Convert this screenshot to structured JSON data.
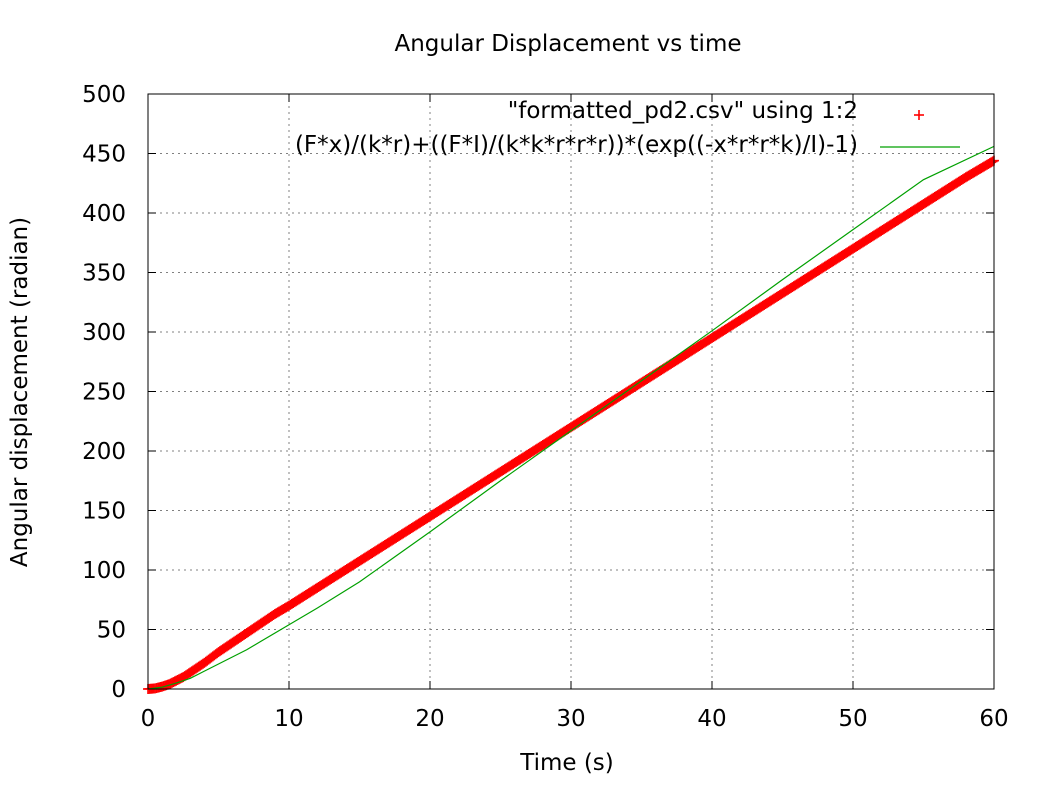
{
  "chart_data": {
    "type": "scatter",
    "title": "Angular Displacement vs time",
    "xlabel": "Time (s)",
    "ylabel": "Angular displacement (radian)",
    "xlim": [
      0,
      60
    ],
    "ylim": [
      0,
      500
    ],
    "xticks": [
      "0",
      "10",
      "20",
      "30",
      "40",
      "50",
      "60"
    ],
    "yticks": [
      "0",
      "50",
      "100",
      "150",
      "200",
      "250",
      "300",
      "350",
      "400",
      "450",
      "500"
    ],
    "grid": true,
    "legend_position": "top-right",
    "series": [
      {
        "name": "\"formatted_pd2.csv\" using 1:2",
        "kind": "points",
        "marker": "+",
        "color": "#ff0000",
        "x": [
          0,
          0.5,
          1,
          1.5,
          2,
          2.5,
          3,
          3.5,
          4,
          5,
          6,
          7,
          8,
          9,
          10,
          12,
          14,
          16,
          18,
          20,
          22,
          24,
          26,
          28,
          30,
          32,
          34,
          36,
          38,
          40,
          42,
          44,
          46,
          48,
          50,
          52,
          54,
          56,
          58,
          60
        ],
        "y": [
          0,
          0.5,
          2,
          4,
          7,
          10,
          14,
          18,
          22,
          31,
          39,
          47,
          55,
          63,
          70,
          85,
          100,
          115,
          130,
          145,
          160,
          175,
          190,
          205,
          220,
          235,
          250,
          265,
          280,
          295,
          310,
          325,
          340,
          355,
          370,
          385,
          400,
          415,
          430,
          444
        ]
      },
      {
        "name": "(F*x)/(k*r)+((F*I)/(k*k*r*r*r))*(exp((-x*r*r*k)/I)-1)",
        "kind": "line",
        "color": "#00a000",
        "x": [
          0,
          1,
          2,
          3,
          4,
          5,
          6,
          7,
          8,
          10,
          12,
          15,
          20,
          25,
          30,
          35,
          40,
          45,
          50,
          55,
          60
        ],
        "y": [
          0,
          1.5,
          5,
          9,
          15,
          21,
          27,
          33,
          40,
          54,
          68,
          90,
          132,
          175,
          217,
          259,
          301,
          344,
          386,
          428,
          456
        ]
      }
    ]
  }
}
